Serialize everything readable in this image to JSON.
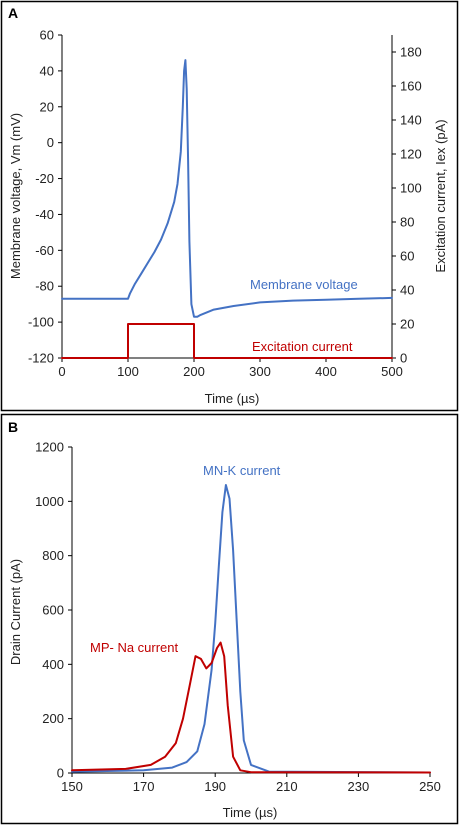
{
  "chart_data": [
    {
      "panel": "A",
      "type": "line",
      "xlabel": "Time (µs)",
      "ylabel": "Membrane voltage, Vm (mV)",
      "y2label": "Excitation current, Iex (pA)",
      "xlim": [
        0,
        500
      ],
      "ylim": [
        -120,
        60
      ],
      "y2lim": [
        0,
        190
      ],
      "xticks": [
        0,
        100,
        200,
        300,
        400,
        500
      ],
      "yticks": [
        60,
        40,
        20,
        0,
        -20,
        -40,
        -60,
        -80,
        -100,
        -120
      ],
      "y2ticks": [
        0,
        20,
        40,
        60,
        80,
        100,
        120,
        140,
        160,
        180
      ],
      "grid": false,
      "series": [
        {
          "name": "Membrane voltage",
          "axis": "left",
          "color": "#4472c4",
          "x": [
            0,
            100,
            103,
            110,
            120,
            130,
            140,
            150,
            160,
            170,
            175,
            180,
            183,
            185,
            187,
            189,
            191,
            193,
            196,
            200,
            205,
            210,
            230,
            260,
            300,
            350,
            400,
            450,
            500
          ],
          "y": [
            -87,
            -87,
            -84,
            -79,
            -73,
            -67,
            -61,
            -54,
            -45,
            -33,
            -23,
            -5,
            20,
            40,
            46,
            30,
            -10,
            -55,
            -90,
            -97,
            -97,
            -96,
            -93,
            -91,
            -89,
            -88,
            -87.5,
            -87,
            -86.5
          ]
        },
        {
          "name": "Excitation current",
          "axis": "right",
          "color": "#c00000",
          "x": [
            0,
            100,
            100,
            200,
            200,
            500
          ],
          "y": [
            0,
            0,
            20,
            20,
            0,
            0
          ]
        }
      ]
    },
    {
      "panel": "B",
      "type": "line",
      "xlabel": "Time (µs)",
      "ylabel": "Drain Current (pA)",
      "xlim": [
        150,
        250
      ],
      "ylim": [
        0,
        1200
      ],
      "xticks": [
        150,
        170,
        190,
        210,
        230,
        250
      ],
      "yticks": [
        1200,
        1000,
        800,
        600,
        400,
        200,
        0
      ],
      "grid": false,
      "series": [
        {
          "name": "MN-K current",
          "color": "#4472c4",
          "x": [
            150,
            170,
            178,
            182,
            185,
            187,
            189,
            190,
            191,
            192,
            193,
            194,
            195,
            196,
            197,
            198,
            200,
            205,
            250
          ],
          "y": [
            5,
            10,
            20,
            40,
            80,
            180,
            380,
            550,
            760,
            960,
            1060,
            1010,
            820,
            560,
            300,
            120,
            30,
            5,
            2
          ]
        },
        {
          "name": "MP- Na current",
          "color": "#c00000",
          "x": [
            150,
            165,
            172,
            176,
            179,
            181,
            183,
            184.5,
            186,
            187.5,
            189,
            190.5,
            191.5,
            192.5,
            193.5,
            195,
            197,
            200,
            250
          ],
          "y": [
            10,
            15,
            30,
            60,
            110,
            200,
            330,
            430,
            420,
            385,
            405,
            460,
            480,
            430,
            250,
            60,
            10,
            3,
            2
          ]
        }
      ]
    }
  ]
}
